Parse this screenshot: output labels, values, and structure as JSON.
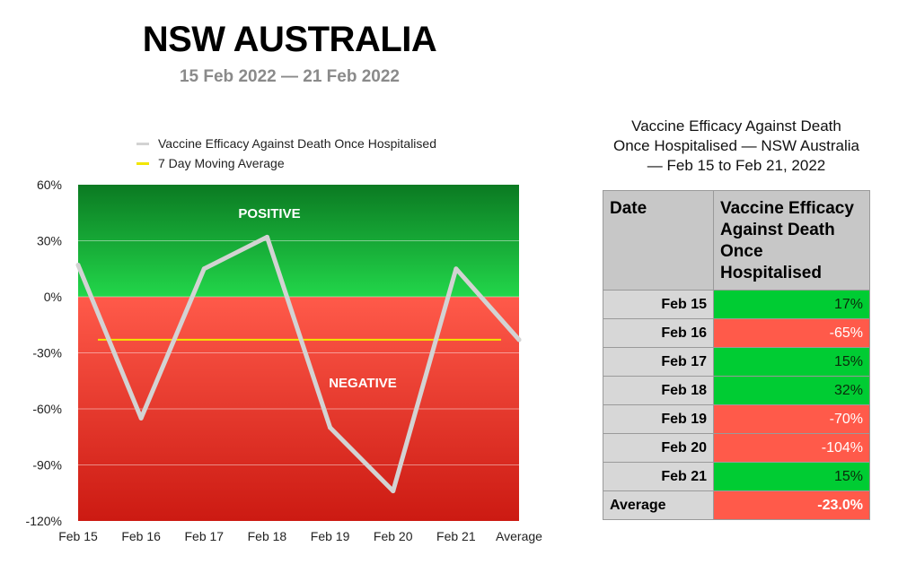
{
  "header": {
    "title": "NSW AUSTRALIA",
    "subtitle": "15 Feb 2022 — 21 Feb 2022"
  },
  "chart_data": {
    "type": "line",
    "categories": [
      "Feb 15",
      "Feb 16",
      "Feb 17",
      "Feb 18",
      "Feb 19",
      "Feb 20",
      "Feb 21",
      "Average"
    ],
    "series": [
      {
        "name": "Vaccine Efficacy Against Death Once Hospitalised",
        "color": "#d3d3d3",
        "values": [
          17,
          -65,
          15,
          32,
          -70,
          -104,
          15,
          -23
        ]
      },
      {
        "name": "7 Day Moving Average",
        "color": "#f2e600",
        "values": [
          null,
          -23,
          -23,
          -23,
          -23,
          -23,
          -23,
          -23
        ]
      }
    ],
    "ylim": [
      -120,
      60
    ],
    "yticks": [
      60,
      30,
      0,
      -30,
      -60,
      -90,
      -120
    ],
    "ytick_labels": [
      "60%",
      "30%",
      "0%",
      "-30%",
      "-60%",
      "-90%",
      "-120%"
    ],
    "region_labels": {
      "positive": "POSITIVE",
      "negative": "NEGATIVE"
    },
    "region_colors": {
      "positive": "#0b8a2a",
      "negative": "#ff4a3a"
    },
    "grid": true,
    "legend_position": "top"
  },
  "table": {
    "caption_lines": [
      "Vaccine Efficacy Against Death",
      "Once Hospitalised — NSW Australia",
      "— Feb 15 to Feb 21, 2022"
    ],
    "headers": [
      "Date",
      "Vaccine Efficacy Against Death Once Hospitalised"
    ],
    "rows": [
      {
        "date": "Feb 15",
        "value": "17%",
        "sign": "pos"
      },
      {
        "date": "Feb 16",
        "value": "-65%",
        "sign": "neg"
      },
      {
        "date": "Feb 17",
        "value": "15%",
        "sign": "pos"
      },
      {
        "date": "Feb 18",
        "value": "32%",
        "sign": "pos"
      },
      {
        "date": "Feb 19",
        "value": "-70%",
        "sign": "neg"
      },
      {
        "date": "Feb 20",
        "value": "-104%",
        "sign": "neg"
      },
      {
        "date": "Feb 21",
        "value": "15%",
        "sign": "pos"
      }
    ],
    "footer": {
      "label": "Average",
      "value": "-23.0%"
    }
  }
}
